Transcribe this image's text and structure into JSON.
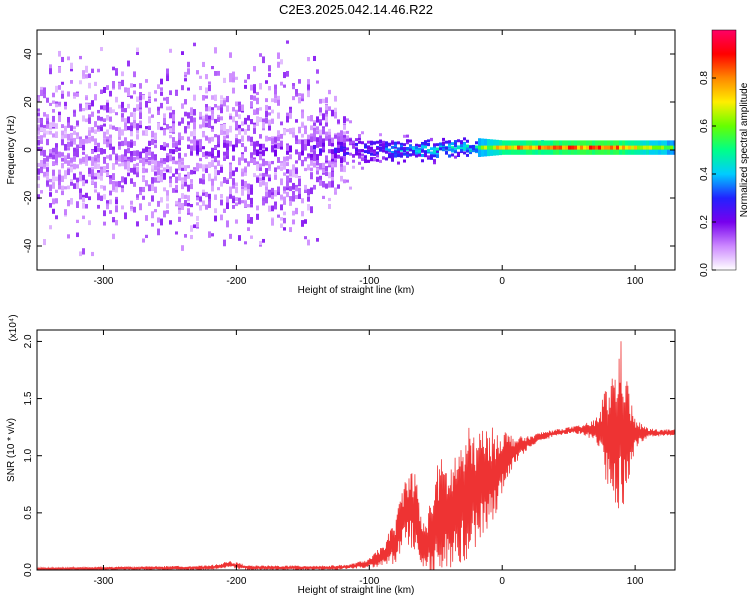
{
  "title": "C2E3.2025.042.14.46.R22",
  "chart_data": [
    {
      "type": "heatmap",
      "name": "spectrogram",
      "xlabel": "Height of straight line (km)",
      "ylabel": "Frequency (Hz)",
      "xlim": [
        -350,
        130
      ],
      "ylim": [
        -50,
        50
      ],
      "xticks": [
        -300,
        -200,
        -100,
        0,
        100
      ],
      "yticks": [
        -40,
        -20,
        0,
        20,
        40
      ],
      "colorbar": {
        "label": "Normalized spectral amplitude",
        "range": [
          0.0,
          1.0
        ],
        "ticks": [
          "0.0",
          "0.2",
          "0.4",
          "0.6",
          "0.8"
        ],
        "tick_values": [
          0.0,
          0.2,
          0.4,
          0.6,
          0.8
        ],
        "colors": [
          "#ffffff",
          "#cc88ff",
          "#7700ee",
          "#2222ff",
          "#00ccff",
          "#00ff88",
          "#66ff00",
          "#ffee00",
          "#ff8800",
          "#ff0000",
          "#ff0066"
        ]
      },
      "description_points": [
        {
          "x": -350,
          "center_hz": 0,
          "noise_spread_hz": 50,
          "band_halfwidth_hz": 8,
          "peak": 0.2
        },
        {
          "x": -150,
          "center_hz": 0,
          "noise_spread_hz": 50,
          "band_halfwidth_hz": 8,
          "peak": 0.25
        },
        {
          "x": -105,
          "center_hz": 0,
          "noise_spread_hz": 8,
          "band_halfwidth_hz": 7,
          "peak": 0.35
        },
        {
          "x": -60,
          "center_hz": 0,
          "noise_spread_hz": 7,
          "band_halfwidth_hz": 6,
          "peak": 0.5
        },
        {
          "x": -20,
          "center_hz": 1,
          "noise_spread_hz": 4,
          "band_halfwidth_hz": 4,
          "peak": 0.6
        },
        {
          "x": 0,
          "center_hz": 1,
          "noise_spread_hz": 3,
          "band_halfwidth_hz": 3,
          "peak": 0.85
        },
        {
          "x": 80,
          "center_hz": 1,
          "noise_spread_hz": 3,
          "band_halfwidth_hz": 3,
          "peak": 0.95
        },
        {
          "x": 130,
          "center_hz": 1,
          "noise_spread_hz": 3,
          "band_halfwidth_hz": 3,
          "peak": 0.6
        }
      ]
    },
    {
      "type": "line",
      "name": "snr",
      "xlabel": "Height of straight line (km)",
      "ylabel": "SNR (10 * v/v)",
      "scale_label": "(x10⁴)",
      "xlim": [
        -350,
        130
      ],
      "ylim": [
        0,
        2.1
      ],
      "xticks": [
        -300,
        -200,
        -100,
        0,
        100
      ],
      "yticks": [
        "0.0",
        "0.5",
        "1.0",
        "1.5",
        "2.0"
      ],
      "ytick_values": [
        0.0,
        0.5,
        1.0,
        1.5,
        2.0
      ],
      "color": "#ee3333",
      "envelope": {
        "x": [
          -350,
          -220,
          -205,
          -190,
          -130,
          -115,
          -100,
          -90,
          -80,
          -75,
          -70,
          -65,
          -60,
          -55,
          -50,
          -45,
          -40,
          -35,
          -30,
          -25,
          -20,
          -15,
          -10,
          -5,
          0,
          5,
          10,
          20,
          30,
          40,
          50,
          60,
          70,
          75,
          80,
          85,
          90,
          95,
          100,
          105,
          110,
          120,
          130
        ],
        "mean": [
          0.01,
          0.02,
          0.05,
          0.02,
          0.02,
          0.03,
          0.06,
          0.12,
          0.25,
          0.45,
          0.55,
          0.5,
          0.2,
          0.25,
          0.4,
          0.5,
          0.45,
          0.55,
          0.6,
          0.65,
          0.7,
          0.75,
          0.8,
          0.85,
          0.95,
          1.0,
          1.05,
          1.12,
          1.17,
          1.2,
          1.22,
          1.23,
          1.22,
          1.2,
          1.18,
          1.2,
          1.25,
          1.2,
          1.18,
          1.2,
          1.2,
          1.2,
          1.2
        ],
        "amplitude": [
          0.01,
          0.02,
          0.03,
          0.02,
          0.02,
          0.02,
          0.04,
          0.1,
          0.2,
          0.3,
          0.35,
          0.35,
          0.2,
          0.3,
          0.5,
          0.5,
          0.45,
          0.5,
          0.55,
          0.6,
          0.5,
          0.5,
          0.45,
          0.4,
          0.3,
          0.2,
          0.12,
          0.05,
          0.04,
          0.03,
          0.03,
          0.04,
          0.1,
          0.3,
          0.5,
          0.6,
          0.8,
          0.4,
          0.15,
          0.08,
          0.04,
          0.03,
          0.03
        ]
      }
    }
  ]
}
